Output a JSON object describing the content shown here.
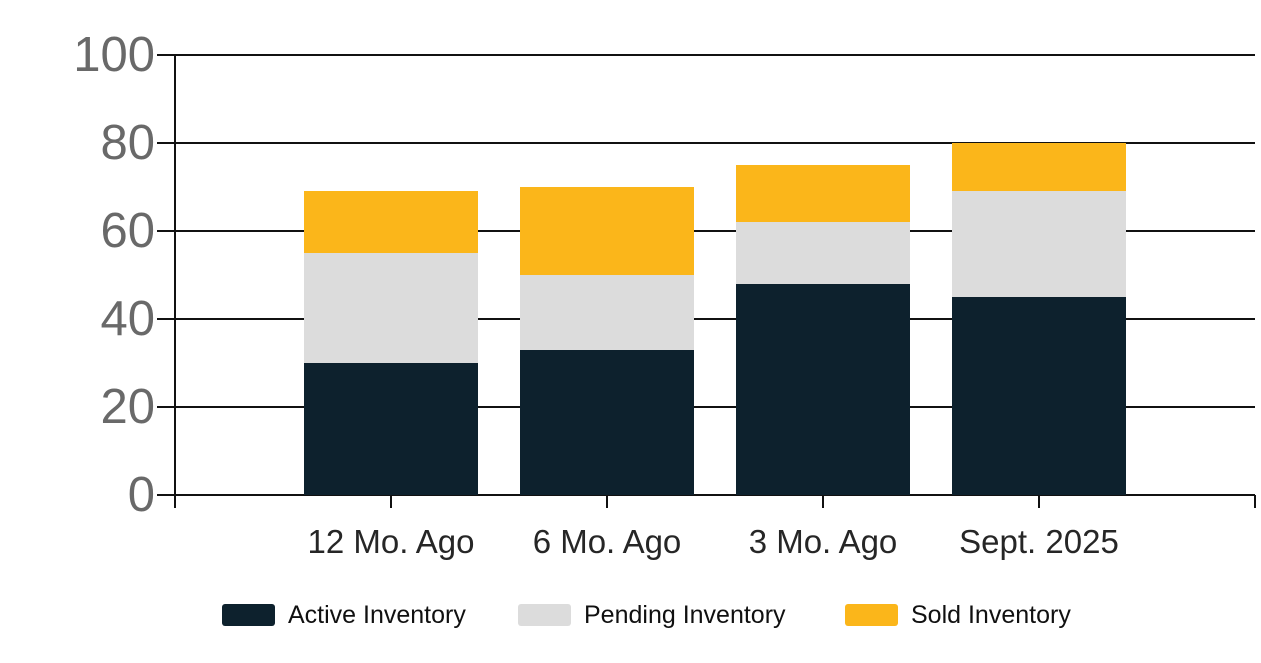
{
  "chart_data": {
    "type": "bar",
    "stacked": true,
    "title": "",
    "xlabel": "",
    "ylabel": "",
    "categories": [
      "12 Mo. Ago",
      "6 Mo. Ago",
      "3 Mo. Ago",
      "Sept. 2025"
    ],
    "series": [
      {
        "name": "Active Inventory",
        "color": "#0d212d",
        "values": [
          30,
          33,
          48,
          45
        ]
      },
      {
        "name": "Pending Inventory",
        "color": "#dcdcdc",
        "values": [
          25,
          17,
          14,
          24
        ]
      },
      {
        "name": "Sold Inventory",
        "color": "#fbb61a",
        "values": [
          14,
          20,
          13,
          11
        ]
      }
    ],
    "totals": [
      69,
      70,
      75,
      80
    ],
    "ylim": [
      0,
      100
    ],
    "yticks": [
      0,
      20,
      40,
      60,
      80,
      100
    ],
    "ytick_labels": [
      "0",
      "20",
      "40",
      "60",
      "80",
      "100"
    ],
    "grid": true,
    "legend_position": "bottom"
  },
  "colors": {
    "background": "#ffffff",
    "axis_and_grid": "#111111",
    "y_tick_label": "#696969",
    "x_tick_label": "#262626",
    "legend_text": "#101010",
    "active_inventory": "#0d212d",
    "pending_inventory": "#dcdcdc",
    "sold_inventory": "#fbb61a"
  }
}
